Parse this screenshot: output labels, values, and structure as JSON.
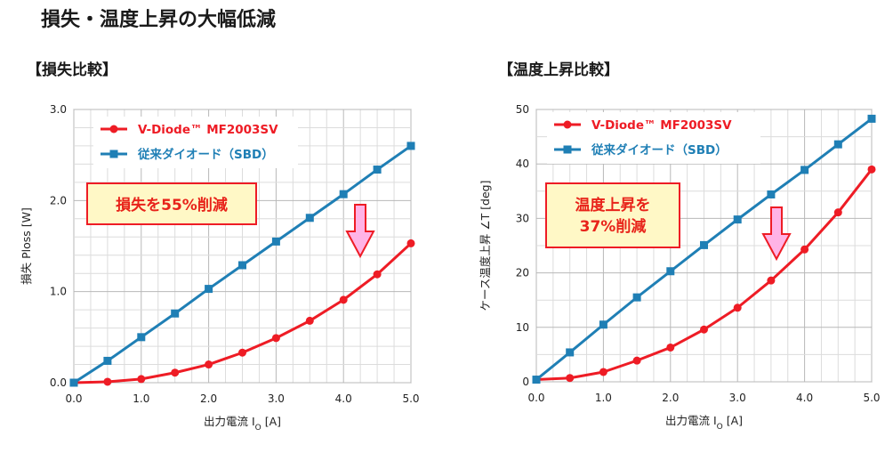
{
  "page": {
    "title": "損失・温度上昇の大幅低減",
    "left_subtitle": "【損失比較】",
    "right_subtitle": "【温度上昇比較】"
  },
  "colors": {
    "red": "#ee1c25",
    "blue": "#1f7fb5",
    "callout_bg": "#fff8c6",
    "arrow_fill": "#ffb3e6"
  },
  "chart_data": [
    {
      "type": "line",
      "xlabel": "出力電流 I_O [A]",
      "ylabel": "損失 Ploss [W]",
      "xlim": [
        0,
        5
      ],
      "ylim": [
        0,
        3
      ],
      "x_ticks": [
        "0.0",
        "1.0",
        "2.0",
        "3.0",
        "4.0",
        "5.0"
      ],
      "y_ticks": [
        "0.0",
        "1.0",
        "2.0",
        "3.0"
      ],
      "grid": true,
      "legend_position": "top-left",
      "x": [
        0,
        0.5,
        1,
        1.5,
        2,
        2.5,
        3,
        3.5,
        4,
        4.5,
        5
      ],
      "series": [
        {
          "name": "V-Diode™ MF2003SV",
          "color": "#ee1c25",
          "marker": "circle",
          "values": [
            0,
            0.01,
            0.04,
            0.11,
            0.2,
            0.33,
            0.49,
            0.68,
            0.91,
            1.19,
            1.53
          ]
        },
        {
          "name": "従来ダイオード（SBD）",
          "color": "#1f7fb5",
          "marker": "square",
          "values": [
            0,
            0.24,
            0.5,
            0.76,
            1.03,
            1.29,
            1.55,
            1.81,
            2.07,
            2.34,
            2.6
          ]
        }
      ],
      "annotation": {
        "lines": [
          "損失を55%削減"
        ]
      }
    },
    {
      "type": "line",
      "xlabel": "出力電流 I_O [A]",
      "ylabel": "ケース温度上昇 ∠T [deg]",
      "xlim": [
        0,
        5
      ],
      "ylim": [
        0,
        50
      ],
      "x_ticks": [
        "0.0",
        "1.0",
        "2.0",
        "3.0",
        "4.0",
        "5.0"
      ],
      "y_ticks": [
        "0",
        "10",
        "20",
        "30",
        "40",
        "50"
      ],
      "grid": true,
      "legend_position": "top-left",
      "x": [
        0,
        0.5,
        1,
        1.5,
        2,
        2.5,
        3,
        3.5,
        4,
        4.5,
        5
      ],
      "series": [
        {
          "name": "V-Diode™ MF2003SV",
          "color": "#ee1c25",
          "marker": "circle",
          "values": [
            0.4,
            0.7,
            1.8,
            3.9,
            6.3,
            9.6,
            13.6,
            18.6,
            24.3,
            31.1,
            39
          ]
        },
        {
          "name": "従来ダイオード（SBD）",
          "color": "#1f7fb5",
          "marker": "square",
          "values": [
            0.4,
            5.4,
            10.5,
            15.5,
            20.3,
            25.1,
            29.8,
            34.4,
            38.9,
            43.6,
            48.3
          ]
        }
      ],
      "annotation": {
        "lines": [
          "温度上昇を",
          "37%削減"
        ]
      }
    }
  ]
}
